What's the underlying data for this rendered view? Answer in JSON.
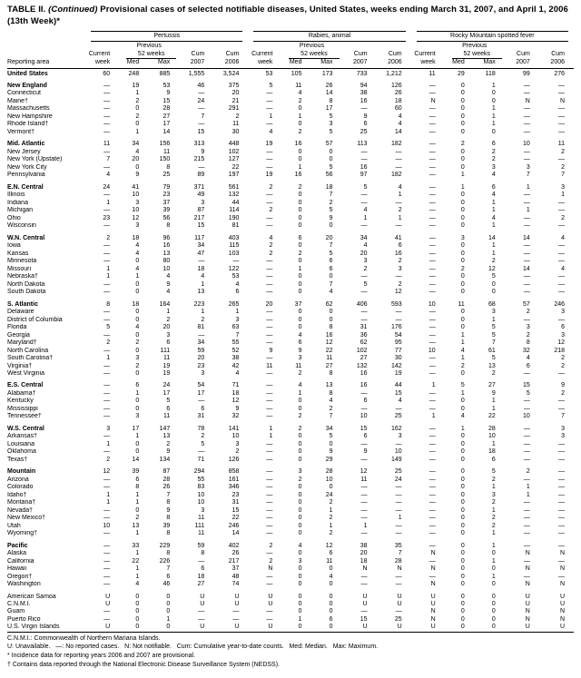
{
  "title": {
    "part1": "TABLE II. ",
    "continued": "(Continued)",
    "part2": " Provisional cases of selected notifiable diseases, United States, weeks ending March 31, 2007, and April 1, 2006",
    "line2": "(13th Week)*"
  },
  "header": {
    "reporting_area": "Reporting area",
    "diseases": [
      "Pertussis",
      "Rabies, animal",
      "Rocky Mountain spotted fever"
    ],
    "previous": "Previous",
    "weeks52": "52 weeks",
    "current": "Current",
    "week": "week",
    "med": "Med",
    "max": "Max",
    "cum": "Cum",
    "y2007": "2007",
    "y2006": "2006"
  },
  "rows": [
    {
      "label": "United States",
      "bold": true,
      "v": [
        "60",
        "248",
        "885",
        "1,555",
        "3,524",
        "53",
        "105",
        "173",
        "733",
        "1,212",
        "11",
        "29",
        "118",
        "99",
        "276"
      ]
    },
    {
      "label": "New England",
      "bold": true,
      "gap": true,
      "v": [
        "—",
        "19",
        "53",
        "46",
        "375",
        "5",
        "11",
        "26",
        "94",
        "126",
        "—",
        "0",
        "1",
        "—",
        "—"
      ]
    },
    {
      "label": "Connecticut",
      "v": [
        "—",
        "1",
        "9",
        "—",
        "20",
        "—",
        "4",
        "14",
        "38",
        "26",
        "—",
        "0",
        "0",
        "—",
        "—"
      ]
    },
    {
      "label": "Maine†",
      "v": [
        "—",
        "2",
        "15",
        "24",
        "21",
        "—",
        "2",
        "8",
        "16",
        "18",
        "N",
        "0",
        "0",
        "N",
        "N"
      ]
    },
    {
      "label": "Massachusetts",
      "v": [
        "—",
        "0",
        "28",
        "—",
        "291",
        "—",
        "0",
        "17",
        "—",
        "60",
        "—",
        "0",
        "1",
        "—",
        "—"
      ]
    },
    {
      "label": "New Hampshire",
      "v": [
        "—",
        "2",
        "27",
        "7",
        "2",
        "1",
        "1",
        "5",
        "9",
        "4",
        "—",
        "0",
        "1",
        "—",
        "—"
      ]
    },
    {
      "label": "Rhode Island†",
      "v": [
        "—",
        "0",
        "17",
        "—",
        "11",
        "—",
        "0",
        "3",
        "6",
        "4",
        "—",
        "0",
        "1",
        "—",
        "—"
      ]
    },
    {
      "label": "Vermont†",
      "v": [
        "—",
        "1",
        "14",
        "15",
        "30",
        "4",
        "2",
        "5",
        "25",
        "14",
        "—",
        "0",
        "0",
        "—",
        "—"
      ]
    },
    {
      "label": "Mid. Atlantic",
      "bold": true,
      "gap": true,
      "v": [
        "11",
        "34",
        "156",
        "313",
        "448",
        "19",
        "16",
        "57",
        "113",
        "182",
        "—",
        "2",
        "6",
        "10",
        "11"
      ]
    },
    {
      "label": "New Jersey",
      "v": [
        "—",
        "4",
        "11",
        "9",
        "102",
        "—",
        "0",
        "0",
        "—",
        "—",
        "—",
        "0",
        "2",
        "—",
        "2"
      ]
    },
    {
      "label": "New York (Upstate)",
      "v": [
        "7",
        "20",
        "150",
        "215",
        "127",
        "—",
        "0",
        "0",
        "—",
        "—",
        "—",
        "0",
        "2",
        "—",
        "—"
      ]
    },
    {
      "label": "New York City",
      "v": [
        "—",
        "0",
        "8",
        "—",
        "22",
        "—",
        "1",
        "5",
        "16",
        "—",
        "—",
        "0",
        "3",
        "3",
        "2"
      ]
    },
    {
      "label": "Pennsylvania",
      "v": [
        "4",
        "9",
        "25",
        "89",
        "197",
        "19",
        "16",
        "56",
        "97",
        "182",
        "—",
        "1",
        "4",
        "7",
        "7"
      ]
    },
    {
      "label": "E.N. Central",
      "bold": true,
      "gap": true,
      "v": [
        "24",
        "41",
        "79",
        "371",
        "561",
        "2",
        "2",
        "18",
        "5",
        "4",
        "—",
        "1",
        "6",
        "1",
        "3"
      ]
    },
    {
      "label": "Illinois",
      "v": [
        "—",
        "10",
        "23",
        "49",
        "132",
        "—",
        "0",
        "7",
        "—",
        "1",
        "—",
        "0",
        "4",
        "—",
        "1"
      ]
    },
    {
      "label": "Indiana",
      "v": [
        "1",
        "3",
        "37",
        "3",
        "44",
        "—",
        "0",
        "2",
        "—",
        "—",
        "—",
        "0",
        "1",
        "—",
        "—"
      ]
    },
    {
      "label": "Michigan",
      "v": [
        "—",
        "10",
        "39",
        "87",
        "114",
        "2",
        "0",
        "5",
        "4",
        "2",
        "—",
        "0",
        "1",
        "1",
        "—"
      ]
    },
    {
      "label": "Ohio",
      "v": [
        "23",
        "12",
        "56",
        "217",
        "190",
        "—",
        "0",
        "9",
        "1",
        "1",
        "—",
        "0",
        "4",
        "—",
        "2"
      ]
    },
    {
      "label": "Wisconsin",
      "v": [
        "—",
        "3",
        "8",
        "15",
        "81",
        "—",
        "0",
        "0",
        "—",
        "—",
        "—",
        "0",
        "1",
        "—",
        "—"
      ]
    },
    {
      "label": "W.N. Central",
      "bold": true,
      "gap": true,
      "v": [
        "2",
        "18",
        "96",
        "117",
        "403",
        "4",
        "6",
        "20",
        "34",
        "41",
        "—",
        "3",
        "14",
        "14",
        "4"
      ]
    },
    {
      "label": "Iowa",
      "v": [
        "—",
        "4",
        "16",
        "34",
        "115",
        "2",
        "0",
        "7",
        "4",
        "6",
        "—",
        "0",
        "1",
        "—",
        "—"
      ]
    },
    {
      "label": "Kansas",
      "v": [
        "—",
        "4",
        "13",
        "47",
        "103",
        "2",
        "2",
        "5",
        "20",
        "16",
        "—",
        "0",
        "1",
        "—",
        "—"
      ]
    },
    {
      "label": "Minnesota",
      "v": [
        "—",
        "0",
        "80",
        "—",
        "—",
        "—",
        "0",
        "6",
        "3",
        "2",
        "—",
        "0",
        "2",
        "—",
        "—"
      ]
    },
    {
      "label": "Missouri",
      "v": [
        "1",
        "4",
        "10",
        "18",
        "122",
        "—",
        "1",
        "6",
        "2",
        "3",
        "—",
        "2",
        "12",
        "14",
        "4"
      ]
    },
    {
      "label": "Nebraska†",
      "v": [
        "1",
        "1",
        "4",
        "4",
        "53",
        "—",
        "0",
        "0",
        "—",
        "—",
        "—",
        "0",
        "5",
        "—",
        "—"
      ]
    },
    {
      "label": "North Dakota",
      "v": [
        "—",
        "0",
        "9",
        "1",
        "4",
        "—",
        "0",
        "7",
        "5",
        "2",
        "—",
        "0",
        "0",
        "—",
        "—"
      ]
    },
    {
      "label": "South Dakota",
      "v": [
        "—",
        "0",
        "4",
        "13",
        "6",
        "—",
        "0",
        "4",
        "—",
        "12",
        "—",
        "0",
        "0",
        "—",
        "—"
      ]
    },
    {
      "label": "S. Atlantic",
      "bold": true,
      "gap": true,
      "v": [
        "8",
        "18",
        "164",
        "223",
        "265",
        "20",
        "37",
        "62",
        "406",
        "593",
        "10",
        "11",
        "68",
        "57",
        "246"
      ]
    },
    {
      "label": "Delaware",
      "v": [
        "—",
        "0",
        "1",
        "1",
        "1",
        "—",
        "0",
        "0",
        "—",
        "—",
        "—",
        "0",
        "3",
        "2",
        "3"
      ]
    },
    {
      "label": "District of Columbia",
      "v": [
        "—",
        "0",
        "2",
        "2",
        "3",
        "—",
        "0",
        "0",
        "—",
        "—",
        "—",
        "0",
        "1",
        "—",
        "—"
      ]
    },
    {
      "label": "Florida",
      "v": [
        "5",
        "4",
        "20",
        "81",
        "63",
        "—",
        "0",
        "8",
        "31",
        "176",
        "—",
        "0",
        "5",
        "3",
        "6"
      ]
    },
    {
      "label": "Georgia",
      "v": [
        "—",
        "0",
        "3",
        "—",
        "7",
        "—",
        "4",
        "16",
        "36",
        "54",
        "—",
        "1",
        "5",
        "2",
        "3"
      ]
    },
    {
      "label": "Maryland†",
      "v": [
        "2",
        "2",
        "6",
        "34",
        "55",
        "—",
        "6",
        "12",
        "62",
        "95",
        "—",
        "1",
        "7",
        "8",
        "12"
      ]
    },
    {
      "label": "North Carolina",
      "v": [
        "—",
        "0",
        "111",
        "59",
        "52",
        "9",
        "9",
        "22",
        "102",
        "77",
        "10",
        "4",
        "61",
        "32",
        "218"
      ]
    },
    {
      "label": "South Carolina†",
      "v": [
        "1",
        "3",
        "11",
        "20",
        "38",
        "—",
        "3",
        "11",
        "27",
        "30",
        "—",
        "1",
        "5",
        "4",
        "2"
      ]
    },
    {
      "label": "Virginia†",
      "v": [
        "—",
        "2",
        "19",
        "23",
        "42",
        "11",
        "11",
        "27",
        "132",
        "142",
        "—",
        "2",
        "13",
        "6",
        "2"
      ]
    },
    {
      "label": "West Virginia",
      "v": [
        "—",
        "0",
        "19",
        "3",
        "4",
        "—",
        "2",
        "8",
        "16",
        "19",
        "—",
        "0",
        "2",
        "—",
        "—"
      ]
    },
    {
      "label": "E.S. Central",
      "bold": true,
      "gap": true,
      "v": [
        "—",
        "6",
        "24",
        "54",
        "71",
        "—",
        "4",
        "13",
        "16",
        "44",
        "1",
        "5",
        "27",
        "15",
        "9"
      ]
    },
    {
      "label": "Alabama†",
      "v": [
        "—",
        "1",
        "17",
        "17",
        "18",
        "—",
        "1",
        "8",
        "—",
        "15",
        "—",
        "1",
        "9",
        "5",
        "2"
      ]
    },
    {
      "label": "Kentucky",
      "v": [
        "—",
        "0",
        "5",
        "—",
        "12",
        "—",
        "0",
        "4",
        "6",
        "4",
        "—",
        "0",
        "1",
        "—",
        "—"
      ]
    },
    {
      "label": "Mississippi",
      "v": [
        "—",
        "0",
        "6",
        "6",
        "9",
        "—",
        "0",
        "2",
        "—",
        "—",
        "—",
        "0",
        "1",
        "—",
        "—"
      ]
    },
    {
      "label": "Tennessee†",
      "v": [
        "—",
        "3",
        "11",
        "31",
        "32",
        "—",
        "2",
        "7",
        "10",
        "25",
        "1",
        "4",
        "22",
        "10",
        "7"
      ]
    },
    {
      "label": "W.S. Central",
      "bold": true,
      "gap": true,
      "v": [
        "3",
        "17",
        "147",
        "78",
        "141",
        "1",
        "2",
        "34",
        "15",
        "162",
        "—",
        "1",
        "28",
        "—",
        "3"
      ]
    },
    {
      "label": "Arkansas†",
      "v": [
        "—",
        "1",
        "13",
        "2",
        "10",
        "1",
        "0",
        "5",
        "6",
        "3",
        "—",
        "0",
        "10",
        "—",
        "3"
      ]
    },
    {
      "label": "Louisiana",
      "v": [
        "1",
        "0",
        "2",
        "5",
        "3",
        "—",
        "0",
        "0",
        "—",
        "—",
        "—",
        "0",
        "1",
        "—",
        "—"
      ]
    },
    {
      "label": "Oklahoma",
      "v": [
        "—",
        "0",
        "9",
        "—",
        "2",
        "—",
        "0",
        "9",
        "9",
        "10",
        "—",
        "0",
        "18",
        "—",
        "—"
      ]
    },
    {
      "label": "Texas†",
      "v": [
        "2",
        "14",
        "134",
        "71",
        "126",
        "—",
        "0",
        "29",
        "—",
        "149",
        "—",
        "0",
        "6",
        "—",
        "—"
      ]
    },
    {
      "label": "Mountain",
      "bold": true,
      "gap": true,
      "v": [
        "12",
        "39",
        "87",
        "294",
        "858",
        "—",
        "3",
        "28",
        "12",
        "25",
        "—",
        "0",
        "5",
        "2",
        "—"
      ]
    },
    {
      "label": "Arizona",
      "v": [
        "—",
        "6",
        "28",
        "55",
        "161",
        "—",
        "2",
        "10",
        "11",
        "24",
        "—",
        "0",
        "2",
        "—",
        "—"
      ]
    },
    {
      "label": "Colorado",
      "v": [
        "—",
        "8",
        "26",
        "83",
        "346",
        "—",
        "0",
        "0",
        "—",
        "—",
        "—",
        "0",
        "1",
        "1",
        "—"
      ]
    },
    {
      "label": "Idaho†",
      "v": [
        "1",
        "1",
        "7",
        "10",
        "23",
        "—",
        "0",
        "24",
        "—",
        "—",
        "—",
        "0",
        "3",
        "1",
        "—"
      ]
    },
    {
      "label": "Montana†",
      "v": [
        "1",
        "1",
        "8",
        "10",
        "31",
        "—",
        "0",
        "2",
        "—",
        "—",
        "—",
        "0",
        "2",
        "—",
        "—"
      ]
    },
    {
      "label": "Nevada†",
      "v": [
        "—",
        "0",
        "9",
        "3",
        "15",
        "—",
        "0",
        "1",
        "—",
        "—",
        "—",
        "0",
        "1",
        "—",
        "—"
      ]
    },
    {
      "label": "New Mexico†",
      "v": [
        "—",
        "2",
        "8",
        "11",
        "22",
        "—",
        "0",
        "2",
        "—",
        "1",
        "—",
        "0",
        "2",
        "—",
        "—"
      ]
    },
    {
      "label": "Utah",
      "v": [
        "10",
        "13",
        "39",
        "111",
        "246",
        "—",
        "0",
        "1",
        "1",
        "—",
        "—",
        "0",
        "2",
        "—",
        "—"
      ]
    },
    {
      "label": "Wyoming†",
      "v": [
        "—",
        "1",
        "8",
        "11",
        "14",
        "—",
        "0",
        "2",
        "—",
        "—",
        "—",
        "0",
        "1",
        "—",
        "—"
      ]
    },
    {
      "label": "Pacific",
      "bold": true,
      "gap": true,
      "v": [
        "—",
        "33",
        "229",
        "59",
        "402",
        "2",
        "4",
        "12",
        "38",
        "35",
        "—",
        "0",
        "1",
        "—",
        "—"
      ]
    },
    {
      "label": "Alaska",
      "v": [
        "—",
        "1",
        "8",
        "8",
        "26",
        "—",
        "0",
        "6",
        "20",
        "7",
        "N",
        "0",
        "0",
        "N",
        "N"
      ]
    },
    {
      "label": "California",
      "v": [
        "—",
        "22",
        "226",
        "—",
        "217",
        "2",
        "3",
        "11",
        "18",
        "28",
        "—",
        "0",
        "1",
        "—",
        "—"
      ]
    },
    {
      "label": "Hawaii",
      "v": [
        "—",
        "1",
        "7",
        "6",
        "37",
        "N",
        "0",
        "0",
        "N",
        "N",
        "N",
        "0",
        "0",
        "N",
        "N"
      ]
    },
    {
      "label": "Oregon†",
      "v": [
        "—",
        "1",
        "6",
        "18",
        "48",
        "—",
        "0",
        "4",
        "—",
        "—",
        "—",
        "0",
        "1",
        "—",
        "—"
      ]
    },
    {
      "label": "Washington",
      "v": [
        "—",
        "4",
        "46",
        "27",
        "74",
        "—",
        "0",
        "0",
        "—",
        "—",
        "N",
        "0",
        "0",
        "N",
        "N"
      ]
    },
    {
      "label": "American Samoa",
      "gap": true,
      "v": [
        "U",
        "0",
        "0",
        "U",
        "U",
        "U",
        "0",
        "0",
        "U",
        "U",
        "U",
        "0",
        "0",
        "U",
        "U"
      ]
    },
    {
      "label": "C.N.M.I.",
      "v": [
        "U",
        "0",
        "0",
        "U",
        "U",
        "U",
        "0",
        "0",
        "U",
        "U",
        "U",
        "0",
        "0",
        "U",
        "U"
      ]
    },
    {
      "label": "Guam",
      "v": [
        "—",
        "0",
        "0",
        "—",
        "—",
        "—",
        "0",
        "0",
        "—",
        "—",
        "N",
        "0",
        "0",
        "N",
        "N"
      ]
    },
    {
      "label": "Puerto Rico",
      "v": [
        "—",
        "0",
        "1",
        "—",
        "—",
        "—",
        "1",
        "6",
        "15",
        "25",
        "N",
        "0",
        "0",
        "N",
        "N"
      ]
    },
    {
      "label": "U.S. Virgin Islands",
      "v": [
        "U",
        "0",
        "0",
        "U",
        "U",
        "U",
        "0",
        "0",
        "U",
        "U",
        "U",
        "0",
        "0",
        "U",
        "U"
      ]
    }
  ],
  "footnotes": [
    "C.N.M.I.: Commonwealth of Northern Mariana Islands.",
    "U: Unavailable.   —: No reported cases.   N: Not notifiable.   Cum: Cumulative year-to-date counts.   Med: Median.   Max: Maximum.",
    "* Incidence data for reporting years 2006 and 2007 are provisional.",
    "† Contains data reported through the National Electronic Disease Surveillance System (NEDSS)."
  ]
}
